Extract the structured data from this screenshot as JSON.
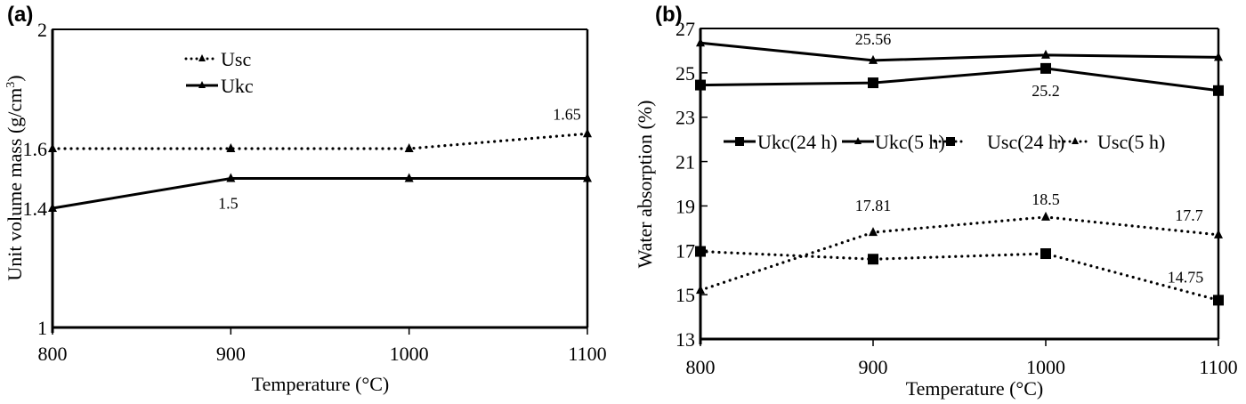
{
  "chart_data": [
    {
      "panel": "(a)",
      "type": "line",
      "title": "",
      "xlabel": "Temperature (°C)",
      "ylabel": "Unit volume mass (g/cm3)",
      "ylabel_main": "Unit volume mass (g/cm",
      "ylabel_sup": "3",
      "ylabel_tail": ")",
      "x": [
        800,
        900,
        1000,
        1100
      ],
      "x_ticks": [
        "800",
        "900",
        "1000",
        "1100"
      ],
      "y_ticks": [
        "1",
        "1.4",
        "1.6",
        "2"
      ],
      "y_tick_values": [
        1,
        1.4,
        1.6,
        2
      ],
      "xlim": [
        800,
        1100
      ],
      "ylim": [
        1,
        2
      ],
      "grid": false,
      "legend_position": "upper-center",
      "series": [
        {
          "name": "Usc",
          "style": "dotted",
          "marker": "triangle",
          "values": [
            1.6,
            1.6,
            1.6,
            1.65
          ]
        },
        {
          "name": "Ukc",
          "style": "solid",
          "marker": "triangle",
          "values": [
            1.4,
            1.5,
            1.5,
            1.5
          ]
        }
      ],
      "annotations": [
        {
          "text": "1.65",
          "x": 1100,
          "y": 1.65
        },
        {
          "text": "1.5",
          "x": 900,
          "y": 1.5
        }
      ]
    },
    {
      "panel": "(b)",
      "type": "line",
      "title": "",
      "xlabel": "Temperature (°C)",
      "ylabel": "Water absorption (%)",
      "x": [
        800,
        900,
        1000,
        1100
      ],
      "x_ticks": [
        "800",
        "900",
        "1000",
        "1100"
      ],
      "y_ticks": [
        "13",
        "15",
        "17",
        "19",
        "21",
        "23",
        "25",
        "27"
      ],
      "y_tick_values": [
        13,
        15,
        17,
        19,
        21,
        23,
        25,
        27
      ],
      "xlim": [
        800,
        1100
      ],
      "ylim": [
        13,
        27
      ],
      "grid": false,
      "legend_position": "center-horizontal",
      "series": [
        {
          "name": "Ukc(24 h)",
          "style": "solid",
          "marker": "square",
          "values": [
            24.45,
            24.55,
            25.2,
            24.2
          ]
        },
        {
          "name": "Ukc(5 h)",
          "style": "solid",
          "marker": "triangle",
          "values": [
            26.35,
            25.56,
            25.8,
            25.7
          ]
        },
        {
          "name": "Usc(24 h)",
          "style": "dotted",
          "marker": "square",
          "values": [
            16.95,
            16.6,
            16.85,
            14.75
          ]
        },
        {
          "name": "Usc(5 h)",
          "style": "dotted",
          "marker": "triangle",
          "values": [
            15.2,
            17.81,
            18.5,
            17.7
          ]
        }
      ],
      "annotations": [
        {
          "text": "25.56",
          "x": 900,
          "y": 25.56
        },
        {
          "text": "25.2",
          "x": 1000,
          "y": 25.2
        },
        {
          "text": "17.81",
          "x": 900,
          "y": 17.81
        },
        {
          "text": "18.5",
          "x": 1000,
          "y": 18.5
        },
        {
          "text": "17.7",
          "x": 1100,
          "y": 17.7
        },
        {
          "text": "14.75",
          "x": 1100,
          "y": 14.75
        }
      ]
    }
  ],
  "colors": {
    "line": "#000000",
    "background": "#ffffff"
  }
}
